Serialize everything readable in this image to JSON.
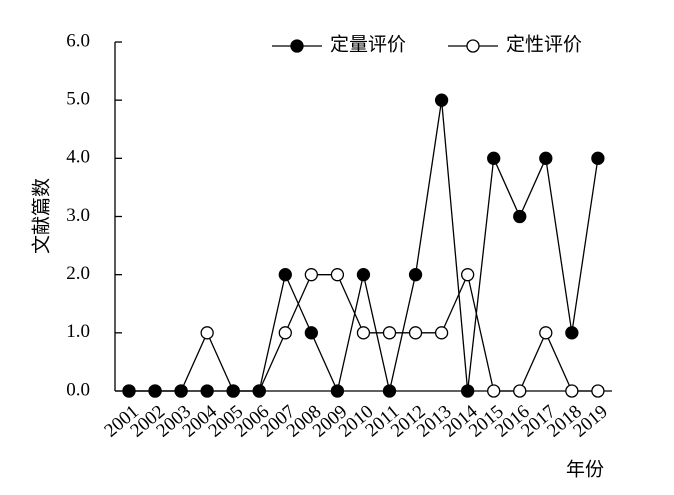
{
  "chart_data": {
    "type": "line",
    "x_label": "年份",
    "y_label": "文献篇数",
    "categories": [
      "2001",
      "2002",
      "2003",
      "2004",
      "2005",
      "2006",
      "2007",
      "2008",
      "2009",
      "2010",
      "2011",
      "2012",
      "2013",
      "2014",
      "2015",
      "2016",
      "2017",
      "2018",
      "2019"
    ],
    "series": [
      {
        "name": "定量评价",
        "color": "#000000",
        "marker": "filled",
        "values": [
          0,
          0,
          0,
          0,
          0,
          0,
          2,
          1,
          0,
          2,
          0,
          2,
          5,
          0,
          4,
          3,
          4,
          1,
          4
        ]
      },
      {
        "name": "定性评价",
        "color": "#000000",
        "marker": "open",
        "values": [
          0,
          0,
          0,
          1,
          0,
          0,
          1,
          2,
          2,
          1,
          1,
          1,
          1,
          2,
          0,
          0,
          1,
          0,
          0
        ]
      }
    ],
    "ylim": [
      0,
      6
    ],
    "yticks": [
      {
        "value": 0,
        "label": "0.0"
      },
      {
        "value": 1,
        "label": "1.0"
      },
      {
        "value": 2,
        "label": "2.0"
      },
      {
        "value": 3,
        "label": "3.0"
      },
      {
        "value": 4,
        "label": "4.0"
      },
      {
        "value": 5,
        "label": "5.0"
      },
      {
        "value": 6,
        "label": "6.0"
      }
    ],
    "legend": "top-right"
  }
}
